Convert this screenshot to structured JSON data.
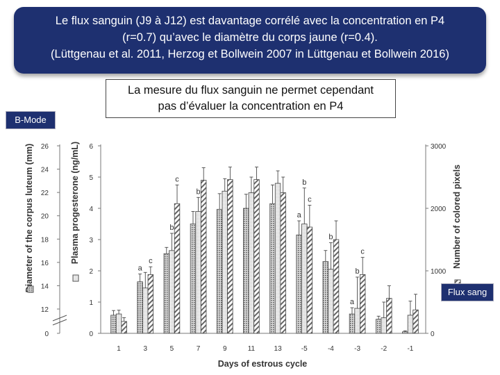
{
  "header": {
    "line1": "Le flux sanguin (J9 à J12) est davantage corrélé avec la concentration en P4",
    "line2": "(r=0.7) qu’avec le diamètre du corps jaune (r=0.4).",
    "line3": "(Lüttgenau et al. 2011, Herzog et Bollwein 2007 in Lüttgenau et Bollwein 2016)"
  },
  "subtitle": {
    "line1": "La mesure du flux sanguin ne permet cependant",
    "line2": "pas d’évaluer la concentration en P4"
  },
  "tags": {
    "left": "B-Mode",
    "right": "Flux sang"
  },
  "colors": {
    "title_bg": "#1e3070",
    "title_text": "#ffffff"
  },
  "chart_data": {
    "type": "bar",
    "xlabel": "Days of estrous cycle",
    "ylabel_left": "Diameter of the corpus luteum (mm)",
    "ylabel_mid": "Plasma progesterone (ng/mL)",
    "ylabel_right": "Number of colored pixels",
    "categories": [
      "1",
      "3",
      "5",
      "7",
      "9",
      "11",
      "13",
      "-5",
      "-4",
      "-3",
      "-2",
      "-1"
    ],
    "axis_left": {
      "ticks": [
        "26",
        "24",
        "22",
        "20",
        "18",
        "16",
        "14",
        "12",
        "0"
      ]
    },
    "axis_mid": {
      "ylim": [
        0,
        6
      ],
      "ticks": [
        "0",
        "1",
        "2",
        "3",
        "4",
        "5",
        "6"
      ]
    },
    "axis_right": {
      "ylim": [
        0,
        3000
      ],
      "ticks": [
        "0",
        "1000",
        "2000",
        "3000"
      ]
    },
    "series": [
      {
        "pattern": "dotted",
        "values": [
          0.58,
          1.65,
          2.55,
          3.5,
          3.97,
          4.0,
          4.15,
          3.15,
          2.3,
          0.62,
          0.45,
          0.05
        ],
        "errors": [
          0.15,
          0.25,
          0.2,
          0.4,
          0.5,
          0.45,
          0.6,
          0.45,
          0.35,
          0.2,
          0.1,
          0.03
        ]
      },
      {
        "pattern": "light",
        "values": [
          0.62,
          1.45,
          2.65,
          3.9,
          4.55,
          4.5,
          4.8,
          3.5,
          2.05,
          0.8,
          0.5,
          0.58
        ],
        "errors": [
          0.12,
          0.5,
          0.55,
          0.45,
          0.4,
          0.5,
          0.4,
          1.15,
          0.85,
          1.0,
          0.5,
          0.45
        ]
      },
      {
        "pattern": "hatched",
        "values": [
          0.38,
          1.88,
          4.15,
          4.9,
          4.92,
          4.92,
          4.5,
          3.4,
          3.0,
          1.88,
          1.12,
          0.75
        ],
        "errors": [
          0.12,
          0.25,
          0.6,
          0.4,
          0.4,
          0.4,
          0.5,
          0.7,
          0.6,
          0.55,
          0.4,
          0.5
        ]
      }
    ],
    "annotations": [
      {
        "category": "3",
        "label": "a"
      },
      {
        "category": "3",
        "label": "c"
      },
      {
        "category": "5",
        "label": "b"
      },
      {
        "category": "5",
        "label": "c"
      },
      {
        "category": "7",
        "label": "b"
      },
      {
        "category": "-5",
        "label": "a"
      },
      {
        "category": "-5",
        "label": "b"
      },
      {
        "category": "-5",
        "label": "c"
      },
      {
        "category": "-4",
        "label": "b"
      },
      {
        "category": "-3",
        "label": "a"
      },
      {
        "category": "-3",
        "label": "b"
      },
      {
        "category": "-3",
        "label": "c"
      }
    ]
  }
}
